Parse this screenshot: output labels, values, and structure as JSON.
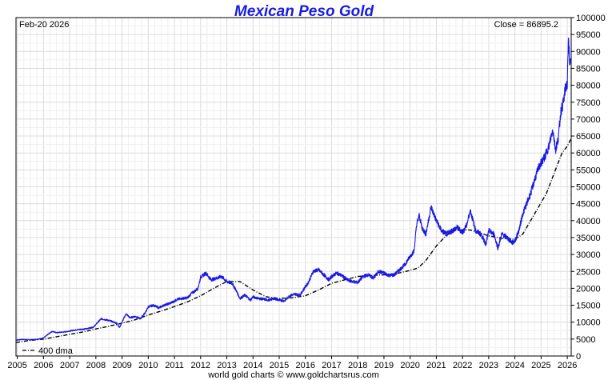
{
  "chart_data": {
    "type": "line",
    "title": "Mexican Peso Gold",
    "date_label": "Feb-20  2026",
    "close_label": "Close = 86895.2",
    "footer": "world gold charts © www.goldchartsrus.com",
    "legend": [
      {
        "name": "400 dma",
        "style": "dash-dot",
        "color": "#000000"
      }
    ],
    "legend_position": "bottom-left",
    "grid": true,
    "xlim": [
      2004.95,
      2026.15
    ],
    "ylim": [
      0,
      100000
    ],
    "x_ticks": [
      "2005",
      "2006",
      "2007",
      "2008",
      "2009",
      "2010",
      "2011",
      "2012",
      "2013",
      "2014",
      "2015",
      "2016",
      "2017",
      "2018",
      "2019",
      "2020",
      "2021",
      "2022",
      "2023",
      "2024",
      "2025",
      "2026"
    ],
    "y_ticks": [
      "0",
      "5000",
      "10000",
      "15000",
      "20000",
      "25000",
      "30000",
      "35000",
      "40000",
      "45000",
      "50000",
      "55000",
      "60000",
      "65000",
      "70000",
      "75000",
      "80000",
      "85000",
      "90000",
      "95000",
      "100000"
    ],
    "colors": {
      "price": "#1a1ae6",
      "dma": "#000000",
      "title": "#1a1ae6",
      "grid": "#e3e3e3"
    },
    "series": [
      {
        "name": "price",
        "x": [
          2004.95,
          2005.2,
          2005.5,
          2005.8,
          2006.0,
          2006.2,
          2006.35,
          2006.5,
          2006.8,
          2007.0,
          2007.3,
          2007.6,
          2007.9,
          2008.0,
          2008.2,
          2008.5,
          2008.8,
          2008.9,
          2009.0,
          2009.15,
          2009.3,
          2009.5,
          2009.7,
          2009.9,
          2010.0,
          2010.2,
          2010.4,
          2010.6,
          2010.8,
          2010.95,
          2011.1,
          2011.3,
          2011.5,
          2011.65,
          2011.75,
          2011.9,
          2012.0,
          2012.2,
          2012.4,
          2012.6,
          2012.8,
          2013.0,
          2013.2,
          2013.35,
          2013.5,
          2013.7,
          2013.9,
          2014.0,
          2014.2,
          2014.4,
          2014.6,
          2014.8,
          2015.0,
          2015.2,
          2015.4,
          2015.6,
          2015.8,
          2016.0,
          2016.1,
          2016.3,
          2016.5,
          2016.7,
          2016.9,
          2017.0,
          2017.2,
          2017.4,
          2017.6,
          2017.8,
          2018.0,
          2018.2,
          2018.4,
          2018.6,
          2018.8,
          2019.0,
          2019.2,
          2019.4,
          2019.6,
          2019.8,
          2020.0,
          2020.15,
          2020.25,
          2020.35,
          2020.45,
          2020.6,
          2020.8,
          2021.0,
          2021.2,
          2021.4,
          2021.6,
          2021.8,
          2022.0,
          2022.15,
          2022.3,
          2022.5,
          2022.7,
          2022.9,
          2023.0,
          2023.2,
          2023.35,
          2023.5,
          2023.7,
          2023.9,
          2024.0,
          2024.15,
          2024.3,
          2024.45,
          2024.6,
          2024.75,
          2024.9,
          2025.0,
          2025.15,
          2025.3,
          2025.45,
          2025.55,
          2025.65,
          2025.75,
          2025.85,
          2025.95,
          2026.0,
          2026.05,
          2026.1,
          2026.13
        ],
        "values": [
          4700,
          4900,
          4800,
          5000,
          5300,
          6600,
          7300,
          6900,
          7100,
          7400,
          7800,
          8000,
          8500,
          9300,
          11000,
          10500,
          9700,
          8400,
          10000,
          12500,
          11300,
          11700,
          11000,
          13000,
          14500,
          15000,
          14200,
          15000,
          15500,
          16000,
          16700,
          17000,
          17200,
          18500,
          19000,
          20000,
          23300,
          24500,
          22500,
          23000,
          23500,
          22000,
          21500,
          19500,
          17000,
          18000,
          16500,
          17500,
          17000,
          16800,
          16500,
          17000,
          16500,
          16300,
          17800,
          18300,
          18000,
          20500,
          21500,
          25000,
          25500,
          24000,
          22500,
          23500,
          24500,
          23700,
          22500,
          22000,
          21700,
          23500,
          24000,
          23000,
          25000,
          24500,
          23800,
          24000,
          25500,
          27000,
          29500,
          31000,
          39000,
          41500,
          38000,
          36000,
          44000,
          40000,
          37000,
          36000,
          37000,
          38000,
          36500,
          38500,
          43000,
          37000,
          36000,
          33000,
          37000,
          36000,
          32000,
          36000,
          35000,
          33500,
          34000,
          37000,
          42000,
          45000,
          48000,
          52000,
          55500,
          57000,
          59000,
          62000,
          67000,
          61000,
          64000,
          72000,
          75000,
          80000,
          80000,
          95000,
          85000,
          86895
        ]
      },
      {
        "name": "400 dma",
        "x": [
          2004.95,
          2005.5,
          2006.0,
          2006.5,
          2007.0,
          2007.5,
          2008.0,
          2008.5,
          2009.0,
          2009.5,
          2010.0,
          2010.5,
          2011.0,
          2011.5,
          2012.0,
          2012.5,
          2013.0,
          2013.5,
          2014.0,
          2014.5,
          2015.0,
          2015.5,
          2016.0,
          2016.5,
          2017.0,
          2017.5,
          2018.0,
          2018.5,
          2019.0,
          2019.5,
          2020.0,
          2020.3,
          2020.6,
          2021.0,
          2021.3,
          2021.6,
          2022.0,
          2022.3,
          2022.6,
          2023.0,
          2023.5,
          2024.0,
          2024.3,
          2024.6,
          2024.9,
          2025.2,
          2025.5,
          2025.8,
          2026.0,
          2026.13
        ],
        "values": [
          4000,
          4600,
          5000,
          5700,
          6400,
          7100,
          8000,
          8800,
          9700,
          10700,
          12100,
          13300,
          14600,
          16000,
          17800,
          20000,
          22000,
          22000,
          19500,
          17500,
          17000,
          17200,
          17800,
          19500,
          21500,
          22500,
          23500,
          23800,
          24000,
          24400,
          25300,
          26000,
          28200,
          32500,
          35000,
          37000,
          37300,
          37200,
          36500,
          35500,
          34800,
          34500,
          36000,
          40000,
          44000,
          48000,
          54000,
          60000,
          62000,
          64000
        ]
      }
    ]
  }
}
